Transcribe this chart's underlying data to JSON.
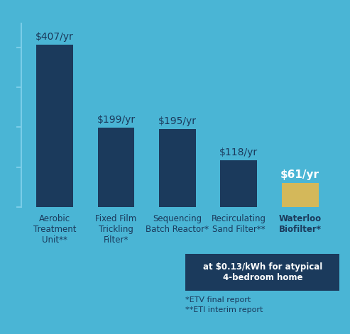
{
  "categories": [
    "Aerobic\nTreatment\nUnit**",
    "Fixed Film\nTrickling\nFilter*",
    "Sequencing\nBatch Reactor*",
    "Recirculating\nSand Filter**",
    "Waterloo\nBiofilter*"
  ],
  "values": [
    407,
    199,
    195,
    118,
    61
  ],
  "labels": [
    "$407/yr",
    "$199/yr",
    "$195/yr",
    "$118/yr",
    "$61/yr"
  ],
  "bar_colors": [
    "#1b3a5c",
    "#1b3a5c",
    "#1b3a5c",
    "#1b3a5c",
    "#d4b85a"
  ],
  "background_color": "#4ab5d5",
  "dark_bar_color": "#1b3a5c",
  "gold_bar_color": "#d4b85a",
  "label_color_normal": "#1b3a5c",
  "label_color_last": "#ffffff",
  "annotation_box_color": "#1b3a5c",
  "annotation_text": "at $0.13/kWh for atypical\n4-bedroom home",
  "footnote1": "*ETV final report",
  "footnote2": "**ETI interim report",
  "tick_line_color": "#7acde8",
  "ylim": [
    0,
    460
  ],
  "bar_width": 0.6
}
